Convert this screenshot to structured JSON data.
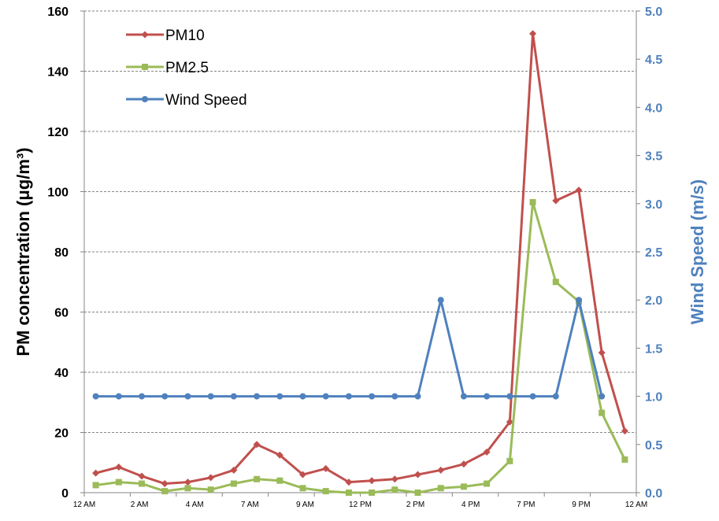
{
  "chart_data": {
    "type": "line",
    "x_tick_labels": [
      "12 AM",
      "2 AM",
      "4 AM",
      "7 AM",
      "9 AM",
      "12 PM",
      "2 PM",
      "4 PM",
      "7 PM",
      "9 PM",
      "12 AM"
    ],
    "x_hours": [
      0,
      1,
      2,
      3,
      4,
      5,
      6,
      7,
      8,
      9,
      10,
      11,
      12,
      13,
      14,
      15,
      16,
      17,
      18,
      19,
      20,
      21,
      22,
      23
    ],
    "ylabel_left": "PM concentration (μg/m³)",
    "ylabel_right": "Wind Speed (m/s)",
    "ylim_left": [
      0,
      160
    ],
    "yticks_left": [
      0,
      20,
      40,
      60,
      80,
      100,
      120,
      140,
      160
    ],
    "ylim_right": [
      0,
      5
    ],
    "yticks_right": [
      "0.0",
      "0.5",
      "1.0",
      "1.5",
      "2.0",
      "2.5",
      "3.0",
      "3.5",
      "4.0",
      "4.5",
      "5.0"
    ],
    "grid": true,
    "legend_position": "top-left",
    "series": [
      {
        "name": "PM10",
        "axis": "left",
        "color": "#c0504d",
        "marker": "diamond",
        "values": [
          6.5,
          8.5,
          5.5,
          3.0,
          3.5,
          5.0,
          7.5,
          16.0,
          12.5,
          6.0,
          8.0,
          3.5,
          4.0,
          4.5,
          6.0,
          7.5,
          9.5,
          13.5,
          23.5,
          152.5,
          97.0,
          100.5,
          46.5,
          20.5
        ]
      },
      {
        "name": "PM2.5",
        "axis": "left",
        "color": "#9bbb59",
        "marker": "square",
        "values": [
          2.5,
          3.5,
          3.0,
          0.5,
          1.5,
          1.0,
          3.0,
          4.5,
          4.0,
          1.5,
          0.5,
          0.0,
          -1.5,
          1.0,
          -0.5,
          1.5,
          2.0,
          3.0,
          10.5,
          96.5,
          70.0,
          63.5,
          26.5,
          11.0
        ]
      },
      {
        "name": "Wind Speed",
        "axis": "right",
        "color": "#4f81bd",
        "marker": "circle",
        "values": [
          1.0,
          1.0,
          1.0,
          1.0,
          1.0,
          1.0,
          1.0,
          1.0,
          1.0,
          1.0,
          1.0,
          1.0,
          1.0,
          1.0,
          1.0,
          2.0,
          1.0,
          1.0,
          1.0,
          1.0,
          1.0,
          2.0,
          1.0,
          null
        ]
      }
    ]
  }
}
